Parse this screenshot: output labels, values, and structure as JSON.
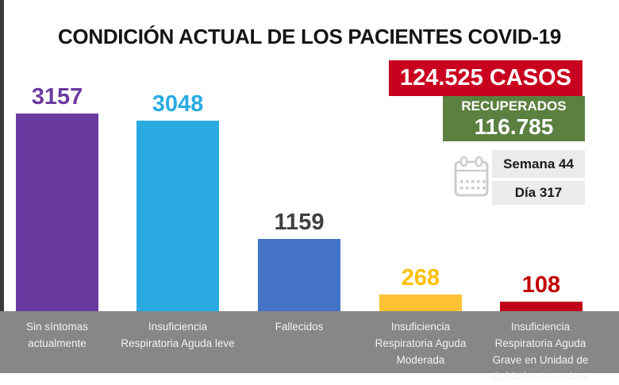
{
  "title": "CONDICIÓN ACTUAL DE LOS PACIENTES COVID-19",
  "chart_data": {
    "type": "bar",
    "title": "CONDICIÓN ACTUAL DE LOS PACIENTES COVID-19",
    "categories": [
      "Sin síntomas actualmente",
      "Insuficiencia Respiratoria Aguda leve",
      "Fallecidos",
      "Insuficiencia Respiratoria Aguda Moderada",
      "Insuficiencia Respiratoria Aguda Grave en Unidad de Cuidados Intensivos"
    ],
    "values": [
      3157,
      3048,
      1159,
      268,
      108
    ],
    "bar_colors": [
      "#6B3AA0",
      "#29ABE2",
      "#4472C4",
      "#FCC233",
      "#C00018"
    ],
    "value_label_colors": [
      "#6B3AA0",
      "#29ABE2",
      "#404040",
      "#FFC000",
      "#C00000"
    ],
    "ylim": [
      0,
      3157
    ],
    "grid": false,
    "legend": "none",
    "category_band_color": "#878787"
  },
  "stats": {
    "cases": {
      "label": "124.525 CASOS",
      "bg": "#C9001F"
    },
    "recovered": {
      "label": "RECUPERADOS",
      "value": "116.785",
      "bg": "#5B8040"
    },
    "week": {
      "label": "Semana 44",
      "bg": "#EBEBEB"
    },
    "day": {
      "label": "Día 317",
      "bg": "#EBEBEB"
    },
    "calendar_icon": "calendar-icon"
  }
}
